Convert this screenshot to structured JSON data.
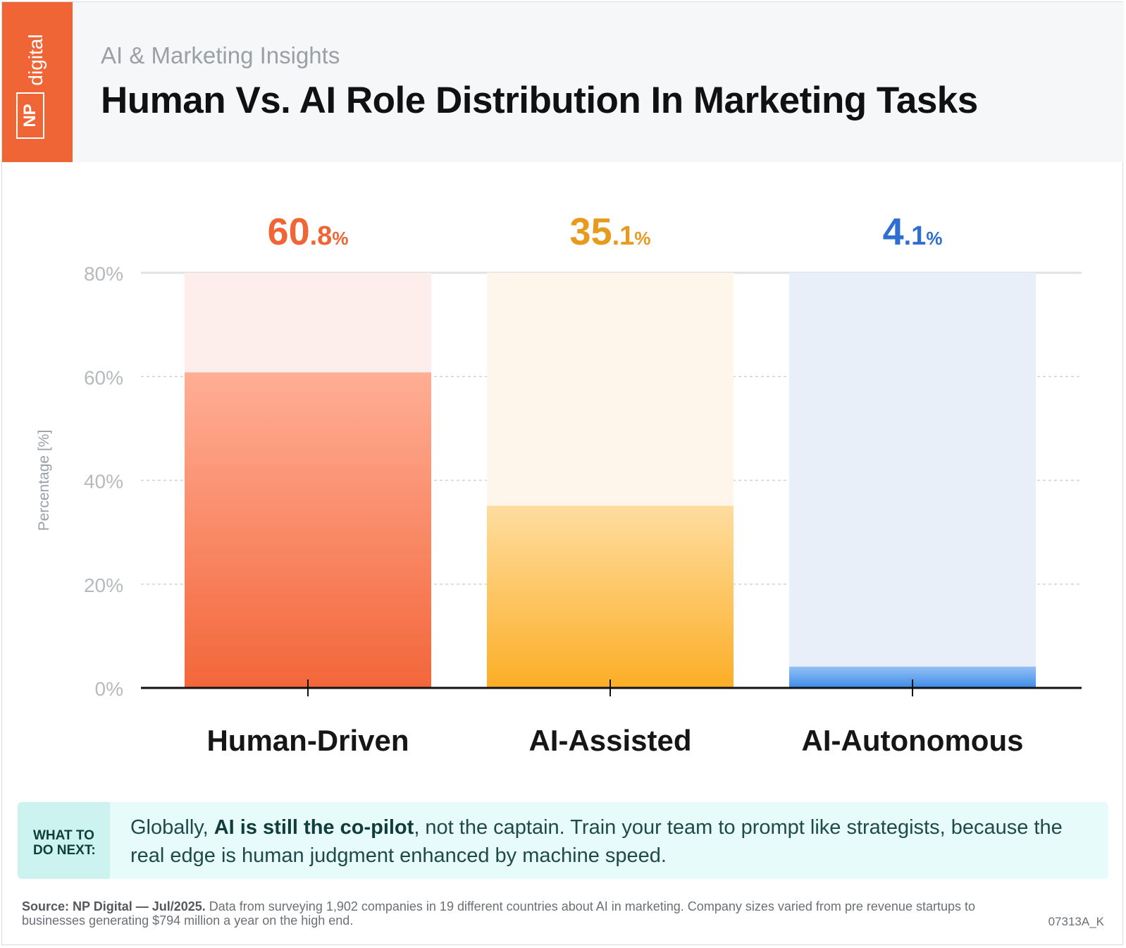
{
  "brand": {
    "logo_text_np": "NP",
    "logo_text_digital": "digital",
    "brand_color": "#f06535"
  },
  "header": {
    "subtitle": "AI & Marketing Insights",
    "title": "Human Vs. AI Role Distribution In Marketing Tasks"
  },
  "chart_data": {
    "type": "bar",
    "categories": [
      "Human-Driven",
      "AI-Assisted",
      "AI-Autonomous"
    ],
    "values": [
      60.8,
      35.1,
      4.1
    ],
    "value_labels": [
      {
        "main": "60",
        "decimal": ".8",
        "unit": "%"
      },
      {
        "main": "35",
        "decimal": ".1",
        "unit": "%"
      },
      {
        "main": "4",
        "decimal": ".1",
        "unit": "%"
      }
    ],
    "colors": [
      "#f06535",
      "#e89a1c",
      "#2f6fd1"
    ],
    "ylabel": "Percentage [%]",
    "ylim": [
      0,
      80
    ],
    "yticks": [
      0,
      20,
      40,
      60,
      80
    ],
    "ytick_labels": [
      "0%",
      "20%",
      "40%",
      "60%",
      "80%"
    ],
    "grid": true
  },
  "callout": {
    "tag": "WHAT TO\nDO NEXT:",
    "text_before": "Globally, ",
    "text_bold": "AI is still the co-pilot",
    "text_after": ", not the captain. Train your team to prompt like strategists, because the real edge is human judgment enhanced by machine speed."
  },
  "footer": {
    "source_bold": "Source: NP Digital — Jul/2025.",
    "source_text": " Data from surveying 1,902 companies in 19 different countries about AI in marketing. Company sizes varied from pre revenue startups to businesses generating $794 million a year on the high end.",
    "code": "07313A_K"
  }
}
